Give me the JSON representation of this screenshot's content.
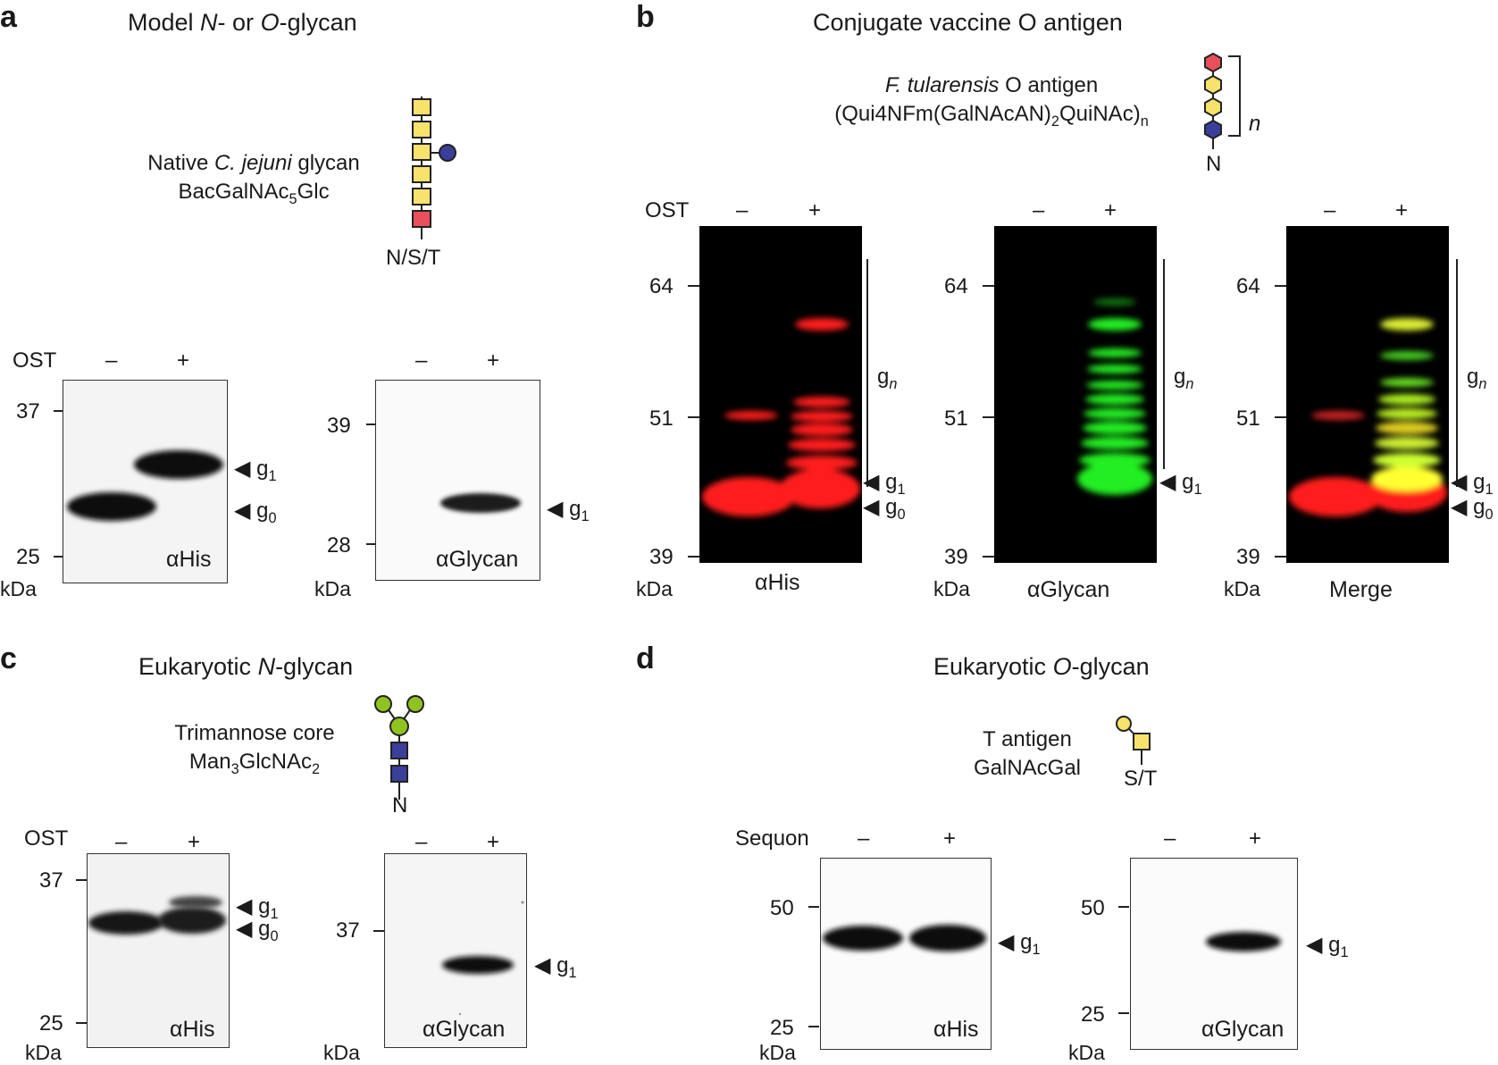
{
  "panels": {
    "a": {
      "letter": "a",
      "title_pre": "Model ",
      "title_n": "N",
      "title_mid": "- or ",
      "title_o": "O",
      "title_post": "-glycan",
      "glycan_line1_pre": "Native ",
      "glycan_line1_species": "C. jejuni",
      "glycan_line1_post": " glycan",
      "glycan_line2_pre": "BacGalNAc",
      "glycan_line2_sub": "5",
      "glycan_line2_post": "Glc",
      "acceptor": "N/S/T",
      "condition_label": "OST",
      "minus": "–",
      "plus": "+",
      "kda": "kDa",
      "blots": [
        {
          "label": "αHis",
          "mw": [
            "37",
            "25"
          ],
          "bands": [
            {
              "name": "g",
              "sub": "1"
            },
            {
              "name": "g",
              "sub": "0"
            }
          ]
        },
        {
          "label": "αGlycan",
          "mw": [
            "39",
            "28"
          ],
          "bands": [
            {
              "name": "g",
              "sub": "1"
            }
          ]
        }
      ]
    },
    "b": {
      "letter": "b",
      "title": "Conjugate vaccine O antigen",
      "glycan_line1_species": "F. tularensis",
      "glycan_line1_post": " O antigen",
      "glycan_line2_pre": "(Qui4NFm(GalNAcAN)",
      "glycan_line2_sub": "2",
      "glycan_line2_mid": "QuiNAc)",
      "glycan_line2_sub2": "n",
      "repeat_label": "n",
      "acceptor": "N",
      "condition_label": "OST",
      "minus": "–",
      "plus": "+",
      "kda": "kDa",
      "mw": [
        "64",
        "51",
        "39"
      ],
      "gn_name": "g",
      "gn_sub": "n",
      "blots": [
        {
          "label": "αHis",
          "bands": [
            {
              "name": "g",
              "sub": "1"
            },
            {
              "name": "g",
              "sub": "0"
            }
          ]
        },
        {
          "label": "αGlycan",
          "bands": [
            {
              "name": "g",
              "sub": "1"
            }
          ]
        },
        {
          "label": "Merge",
          "bands": [
            {
              "name": "g",
              "sub": "1"
            },
            {
              "name": "g",
              "sub": "0"
            }
          ]
        }
      ]
    },
    "c": {
      "letter": "c",
      "title_pre": "Eukaryotic ",
      "title_n": "N",
      "title_post": "-glycan",
      "glycan_line1": "Trimannose core",
      "glycan_line2_pre": "Man",
      "glycan_line2_sub": "3",
      "glycan_line2_mid": "GlcNAc",
      "glycan_line2_sub2": "2",
      "acceptor": "N",
      "condition_label": "OST",
      "minus": "–",
      "plus": "+",
      "kda": "kDa",
      "blots": [
        {
          "label": "αHis",
          "mw": [
            "37",
            "25"
          ],
          "bands": [
            {
              "name": "g",
              "sub": "1"
            },
            {
              "name": "g",
              "sub": "0"
            }
          ]
        },
        {
          "label": "αGlycan",
          "mw": [
            "37"
          ],
          "bands": [
            {
              "name": "g",
              "sub": "1"
            }
          ]
        }
      ]
    },
    "d": {
      "letter": "d",
      "title_pre": "Eukaryotic ",
      "title_o": "O",
      "title_post": "-glycan",
      "glycan_line1": "T antigen",
      "glycan_line2": "GalNAcGal",
      "acceptor": "S/T",
      "condition_label": "Sequon",
      "minus": "–",
      "plus": "+",
      "kda": "kDa",
      "blots": [
        {
          "label": "αHis",
          "mw": [
            "50",
            "25"
          ],
          "bands": [
            {
              "name": "g",
              "sub": "1"
            }
          ]
        },
        {
          "label": "αGlycan",
          "mw": [
            "50",
            "25"
          ],
          "bands": [
            {
              "name": "g",
              "sub": "1"
            }
          ]
        }
      ]
    }
  },
  "colors": {
    "galnac_yellow": "#f7e26b",
    "bac_red": "#e8505b",
    "glc_blue": "#3a3f9a",
    "man_green": "#8fc31f",
    "his_red": "#ff1a1a",
    "glycan_green": "#22ee22",
    "merge_yellow": "#ffff33"
  }
}
